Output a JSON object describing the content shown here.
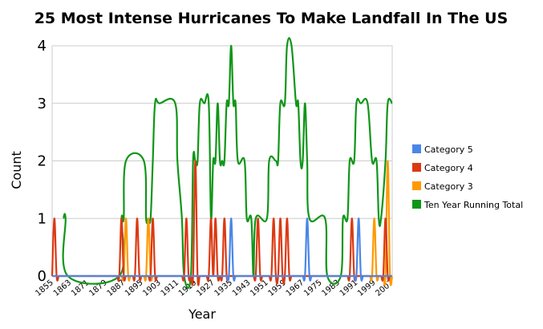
{
  "chart_data": {
    "type": "line",
    "title": "25 Most Intense Hurricanes To Make Landfall In The US",
    "xlabel": "Year",
    "ylabel": "Count",
    "xlim": [
      1855,
      2007
    ],
    "ylim": [
      0,
      4
    ],
    "yticks": [
      "0",
      "1",
      "2",
      "3",
      "4"
    ],
    "xticks": [
      "1855",
      "1863",
      "1871",
      "1879",
      "1887",
      "1895",
      "1903",
      "1911",
      "1919",
      "1927",
      "1935",
      "1943",
      "1951",
      "1959",
      "1967",
      "1975",
      "1983",
      "1991",
      "1999",
      "2007"
    ],
    "grid": true,
    "legend_position": "right",
    "series": [
      {
        "name": "Category 5",
        "color": "#4a86e8",
        "points": [
          [
            1935,
            1
          ],
          [
            1969,
            1
          ],
          [
            1992,
            1
          ]
        ]
      },
      {
        "name": "Category 4",
        "color": "#dc3912",
        "points": [
          [
            1856,
            1
          ],
          [
            1886,
            1
          ],
          [
            1893,
            1
          ],
          [
            1900,
            1
          ],
          [
            1915,
            1
          ],
          [
            1919,
            2
          ],
          [
            1926,
            1
          ],
          [
            1928,
            1
          ],
          [
            1932,
            1
          ],
          [
            1947,
            1
          ],
          [
            1954,
            1
          ],
          [
            1957,
            1
          ],
          [
            1960,
            1
          ],
          [
            1989,
            1
          ],
          [
            2004,
            1
          ]
        ]
      },
      {
        "name": "Category 3",
        "color": "#ff9900",
        "points": [
          [
            1888,
            1
          ],
          [
            1898,
            1
          ],
          [
            1999,
            1
          ],
          [
            2005,
            2
          ]
        ]
      },
      {
        "name": "Ten Year Running Total",
        "color": "#109618",
        "points": [
          [
            1860,
            1
          ],
          [
            1861,
            1
          ],
          [
            1862,
            0
          ],
          [
            1885,
            0
          ],
          [
            1886,
            1
          ],
          [
            1887,
            1
          ],
          [
            1888,
            2
          ],
          [
            1896,
            2
          ],
          [
            1897,
            1
          ],
          [
            1898,
            1
          ],
          [
            1899,
            1
          ],
          [
            1900,
            2
          ],
          [
            1901,
            3
          ],
          [
            1903,
            3
          ],
          [
            1910,
            3
          ],
          [
            1911,
            2
          ],
          [
            1913,
            1
          ],
          [
            1914,
            0
          ],
          [
            1917,
            0
          ],
          [
            1918,
            2
          ],
          [
            1919,
            2
          ],
          [
            1920,
            2
          ],
          [
            1921,
            3
          ],
          [
            1923,
            3
          ],
          [
            1925,
            3
          ],
          [
            1926,
            1
          ],
          [
            1927,
            2
          ],
          [
            1928,
            2
          ],
          [
            1929,
            3
          ],
          [
            1930,
            2
          ],
          [
            1931,
            2
          ],
          [
            1932,
            2
          ],
          [
            1933,
            3
          ],
          [
            1934,
            3
          ],
          [
            1935,
            4
          ],
          [
            1936,
            3
          ],
          [
            1937,
            3
          ],
          [
            1938,
            2
          ],
          [
            1941,
            2
          ],
          [
            1942,
            1
          ],
          [
            1944,
            1
          ],
          [
            1945,
            0
          ],
          [
            1946,
            1
          ],
          [
            1951,
            1
          ],
          [
            1952,
            2
          ],
          [
            1955,
            2
          ],
          [
            1956,
            2
          ],
          [
            1957,
            3
          ],
          [
            1959,
            3
          ],
          [
            1960,
            4
          ],
          [
            1962,
            4
          ],
          [
            1964,
            3
          ],
          [
            1965,
            3
          ],
          [
            1966,
            2
          ],
          [
            1967,
            2
          ],
          [
            1968,
            3
          ],
          [
            1969,
            2
          ],
          [
            1970,
            1
          ],
          [
            1977,
            1
          ],
          [
            1978,
            0
          ],
          [
            1984,
            0
          ],
          [
            1985,
            1
          ],
          [
            1987,
            1
          ],
          [
            1988,
            2
          ],
          [
            1990,
            2
          ],
          [
            1991,
            3
          ],
          [
            1993,
            3
          ],
          [
            1996,
            3
          ],
          [
            1998,
            2
          ],
          [
            2000,
            2
          ],
          [
            2001,
            1
          ],
          [
            2002,
            1
          ],
          [
            2004,
            2
          ],
          [
            2005,
            3
          ],
          [
            2007,
            3
          ]
        ]
      }
    ]
  }
}
